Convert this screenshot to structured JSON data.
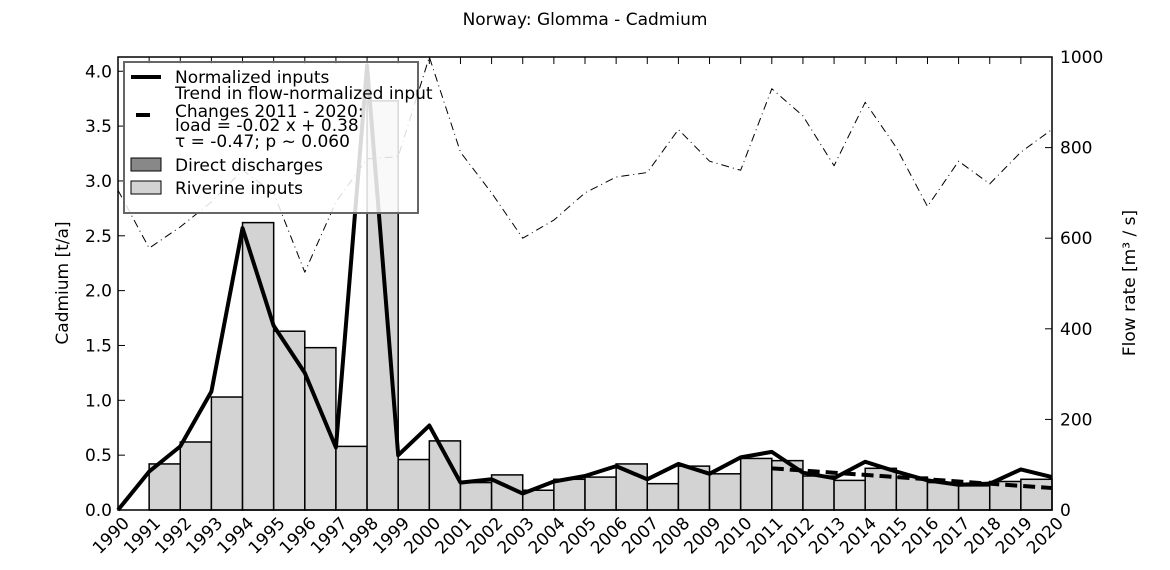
{
  "chart_data": {
    "type": "bar",
    "title": "Norway: Glomma - Cadmium",
    "y_label": "Cadmium [t/a]",
    "y2_label": "Flow rate [m³ / s]",
    "xlim": [
      1990,
      2020
    ],
    "xticks": [
      1990,
      1991,
      1992,
      1993,
      1994,
      1995,
      1996,
      1997,
      1998,
      1999,
      2000,
      2001,
      2002,
      2003,
      2004,
      2005,
      2006,
      2007,
      2008,
      2009,
      2010,
      2011,
      2012,
      2013,
      2014,
      2015,
      2016,
      2017,
      2018,
      2019,
      2020
    ],
    "ylim": [
      0,
      4.13
    ],
    "yticks": [
      {
        "value": 0,
        "label": "0.0"
      },
      {
        "value": 0.5,
        "label": "0.5"
      },
      {
        "value": 1,
        "label": "1.0"
      },
      {
        "value": 1.5,
        "label": "1.5"
      },
      {
        "value": 2,
        "label": "2.0"
      },
      {
        "value": 2.5,
        "label": "2.5"
      },
      {
        "value": 3,
        "label": "3.0"
      },
      {
        "value": 3.5,
        "label": "3.5"
      },
      {
        "value": 4,
        "label": "4.0"
      }
    ],
    "y2lim": [
      0,
      1000
    ],
    "y2ticks": [
      0,
      200,
      400,
      600,
      800,
      1000
    ],
    "series": [
      {
        "name": "Riverine inputs",
        "kind": "bar",
        "color": "#d3d3d3",
        "x": [
          1991,
          1992,
          1993,
          1994,
          1995,
          1996,
          1997,
          1998,
          1999,
          2000,
          2001,
          2002,
          2003,
          2004,
          2005,
          2006,
          2007,
          2008,
          2009,
          2010,
          2011,
          2012,
          2013,
          2014,
          2015,
          2016,
          2017,
          2018,
          2019
        ],
        "values": [
          0.42,
          0.62,
          1.03,
          2.62,
          1.63,
          1.48,
          0.58,
          3.73,
          0.46,
          0.63,
          0.25,
          0.32,
          0.18,
          0.28,
          0.3,
          0.42,
          0.24,
          0.4,
          0.33,
          0.47,
          0.45,
          0.31,
          0.27,
          0.38,
          0.3,
          0.25,
          0.22,
          0.26,
          0.28
        ]
      },
      {
        "name": "Direct discharges",
        "kind": "bar",
        "color": "#888888",
        "x": [
          1991,
          1992,
          1993,
          1994,
          1995,
          1996,
          1997,
          1998,
          1999,
          2000,
          2001,
          2002,
          2003,
          2004,
          2005,
          2006,
          2007,
          2008,
          2009,
          2010,
          2011,
          2012,
          2013,
          2014,
          2015,
          2016,
          2017,
          2018,
          2019
        ],
        "values": [
          0,
          0,
          0,
          0,
          0,
          0,
          0,
          0,
          0,
          0,
          0,
          0,
          0,
          0,
          0,
          0,
          0,
          0,
          0,
          0,
          0,
          0,
          0,
          0,
          0,
          0,
          0,
          0,
          0
        ]
      },
      {
        "name": "Normalized inputs",
        "kind": "line",
        "color": "#000000",
        "x": [
          1990,
          1991,
          1992,
          1993,
          1994,
          1995,
          1996,
          1997,
          1998,
          1999,
          2000,
          2001,
          2002,
          2003,
          2004,
          2005,
          2006,
          2007,
          2008,
          2009,
          2010,
          2011,
          2012,
          2013,
          2014,
          2015,
          2016,
          2017,
          2018,
          2019,
          2020
        ],
        "values": [
          0.0,
          0.35,
          0.58,
          1.08,
          2.57,
          1.68,
          1.25,
          0.57,
          4.05,
          0.5,
          0.77,
          0.25,
          0.28,
          0.15,
          0.26,
          0.31,
          0.4,
          0.28,
          0.42,
          0.33,
          0.48,
          0.53,
          0.34,
          0.29,
          0.44,
          0.35,
          0.27,
          0.23,
          0.24,
          0.37,
          0.3
        ]
      },
      {
        "name": "Trend in flow-normalized input",
        "kind": "trend",
        "color": "#000000",
        "annotation": [
          "Changes 2011 - 2020:",
          "load = -0.02 x +  0.38",
          "τ = -0.47; p ~ 0.060"
        ],
        "x": [
          2011,
          2012,
          2013,
          2014,
          2015,
          2016,
          2017,
          2018,
          2019,
          2020
        ],
        "values": [
          0.38,
          0.36,
          0.34,
          0.32,
          0.3,
          0.28,
          0.26,
          0.24,
          0.22,
          0.2
        ]
      },
      {
        "name": "Flow rate",
        "kind": "flow",
        "axis": "y2",
        "color": "#000000",
        "x": [
          1990,
          1991,
          1992,
          1993,
          1994,
          1995,
          1996,
          1997,
          1998,
          1999,
          2000,
          2001,
          2002,
          2003,
          2004,
          2005,
          2006,
          2007,
          2008,
          2009,
          2010,
          2011,
          2012,
          2013,
          2014,
          2015,
          2016,
          2017,
          2018,
          2019,
          2020
        ],
        "values": [
          706,
          578,
          625,
          680,
          750,
          700,
          525,
          680,
          775,
          780,
          1000,
          790,
          700,
          600,
          640,
          700,
          735,
          745,
          840,
          770,
          750,
          930,
          870,
          760,
          900,
          800,
          670,
          770,
          720,
          790,
          840
        ]
      }
    ]
  }
}
